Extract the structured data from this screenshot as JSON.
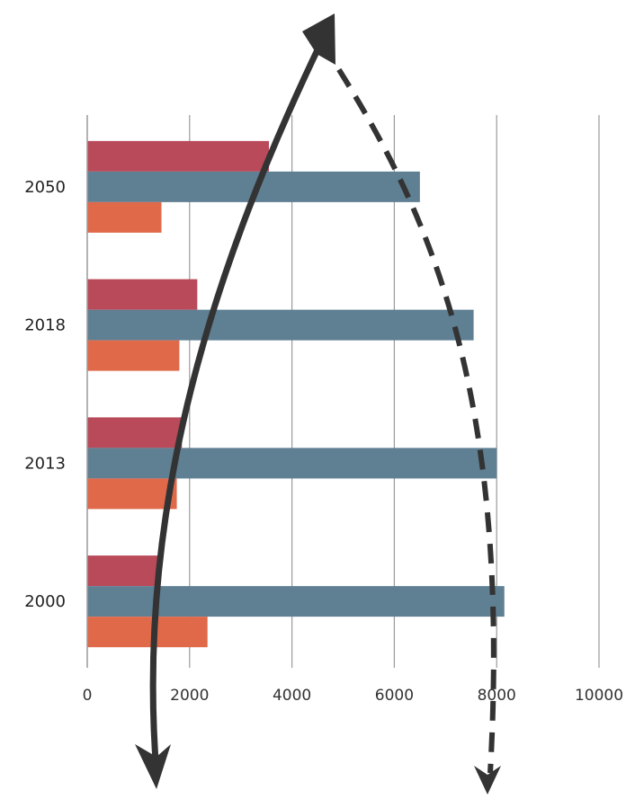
{
  "chart_data": {
    "type": "bar",
    "orientation": "horizontal",
    "title": "",
    "xlabel": "",
    "ylabel": "",
    "categories": [
      "2000",
      "2013",
      "2018",
      "2050"
    ],
    "series": [
      {
        "color": "#b94a5a",
        "values": [
          1400,
          1850,
          2150,
          3550
        ]
      },
      {
        "color": "#5f7f93",
        "values": [
          8150,
          8000,
          7550,
          6500
        ]
      },
      {
        "color": "#e0694a",
        "values": [
          2350,
          1750,
          1800,
          1450
        ]
      }
    ],
    "xlim": [
      0,
      10000
    ],
    "xticks": [
      "0",
      "2000",
      "4000",
      "6000",
      "8000",
      "10000"
    ],
    "grid": "vertical",
    "legend": "none",
    "annotations": [
      {
        "type": "curved-arrow",
        "style": "solid",
        "color": "#333333",
        "direction": "both"
      },
      {
        "type": "curved-arrow",
        "style": "dashed",
        "color": "#333333",
        "direction": "down"
      }
    ]
  }
}
